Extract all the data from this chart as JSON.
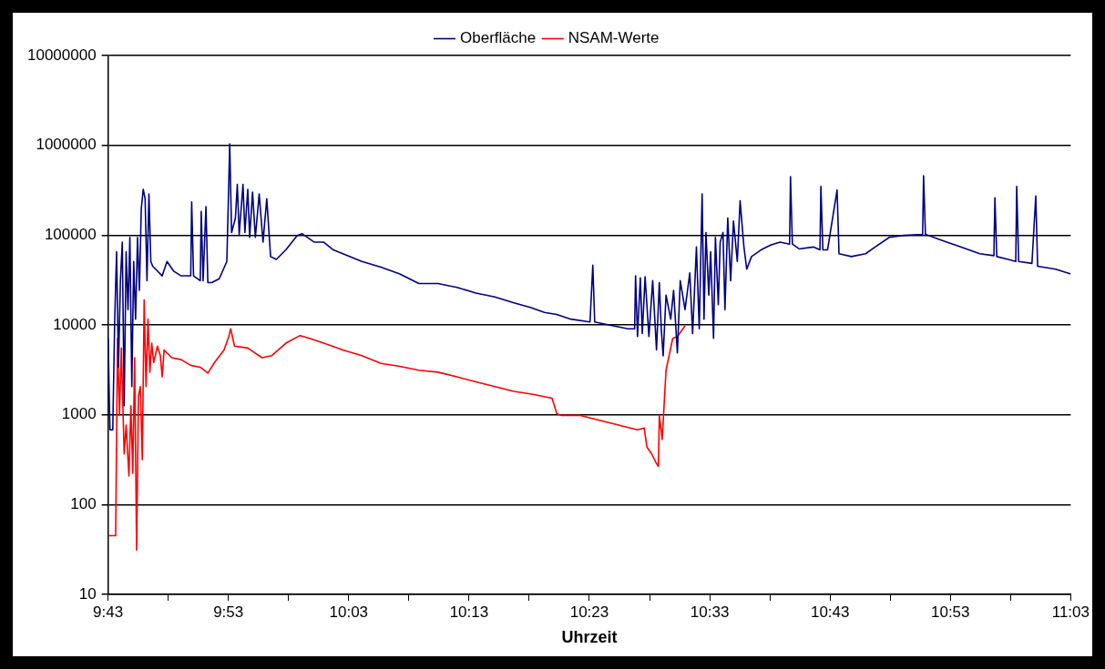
{
  "chart_data": {
    "type": "line",
    "xlabel": "Uhrzeit",
    "log": "y",
    "grid": "y",
    "legend": "top",
    "marker": "none",
    "xlim": [
      9.7167,
      11.05
    ],
    "ylim": [
      10,
      10000000
    ],
    "xticks": [
      {
        "value": 9.7167,
        "label": "9:43"
      },
      {
        "value": 9.8,
        "label": null
      },
      {
        "value": 9.8833,
        "label": "9:53"
      },
      {
        "value": 9.9667,
        "label": null
      },
      {
        "value": 10.05,
        "label": "10:03"
      },
      {
        "value": 10.1333,
        "label": null
      },
      {
        "value": 10.2167,
        "label": "10:13"
      },
      {
        "value": 10.3,
        "label": null
      },
      {
        "value": 10.3833,
        "label": "10:23"
      },
      {
        "value": 10.4667,
        "label": null
      },
      {
        "value": 10.55,
        "label": "10:33"
      },
      {
        "value": 10.6333,
        "label": null
      },
      {
        "value": 10.7167,
        "label": "10:43"
      },
      {
        "value": 10.8,
        "label": null
      },
      {
        "value": 10.8833,
        "label": "10:53"
      },
      {
        "value": 10.9667,
        "label": null
      },
      {
        "value": 11.05,
        "label": "11:03"
      }
    ],
    "yticks": [
      10,
      100,
      1000,
      10000,
      100000,
      1000000,
      10000000
    ],
    "series": [
      {
        "name": "Oberfläche",
        "color": "#000080",
        "x": [
          9.7167,
          9.7193,
          9.7232,
          9.7259,
          9.7285,
          9.7311,
          9.7338,
          9.7364,
          9.739,
          9.7417,
          9.7443,
          9.7469,
          9.7496,
          9.7522,
          9.7548,
          9.7575,
          9.7601,
          9.7627,
          9.7654,
          9.768,
          9.7706,
          9.7733,
          9.7759,
          9.7785,
          9.7851,
          9.7917,
          9.7983,
          9.8075,
          9.818,
          9.8312,
          9.8325,
          9.8351,
          9.8444,
          9.8457,
          9.8483,
          9.8523,
          9.8549,
          9.8602,
          9.8707,
          9.8812,
          9.8852,
          9.8878,
          9.8931,
          9.8957,
          9.8983,
          9.9036,
          9.9062,
          9.9102,
          9.9128,
          9.9168,
          9.9207,
          9.926,
          9.9313,
          9.9365,
          9.9418,
          9.9497,
          9.9629,
          9.9787,
          9.9852,
          10.0024,
          10.0155,
          10.0287,
          10.0419,
          10.0682,
          10.0946,
          10.1208,
          10.1472,
          10.1735,
          10.1999,
          10.2262,
          10.2525,
          10.2789,
          10.3026,
          10.3211,
          10.3382,
          10.3578,
          10.3842,
          10.3881,
          10.3907,
          10.4105,
          10.4368,
          10.446,
          10.4473,
          10.45,
          10.4539,
          10.4566,
          10.4605,
          10.4658,
          10.471,
          10.4763,
          10.4802,
          10.4829,
          10.4855,
          10.4895,
          10.496,
          10.5,
          10.5052,
          10.5092,
          10.5158,
          10.5224,
          10.5263,
          10.5316,
          10.5355,
          10.5395,
          10.5421,
          10.5448,
          10.5487,
          10.5513,
          10.5553,
          10.5579,
          10.5619,
          10.5645,
          10.5684,
          10.5711,
          10.575,
          10.579,
          10.5829,
          10.5882,
          10.5921,
          10.5974,
          10.6013,
          10.6079,
          10.6211,
          10.6343,
          10.6474,
          10.6606,
          10.6619,
          10.6645,
          10.6738,
          10.6935,
          10.7027,
          10.704,
          10.7067,
          10.7132,
          10.7264,
          10.7291,
          10.7462,
          10.7659,
          10.7791,
          10.7988,
          10.8186,
          10.8449,
          10.8462,
          10.8488,
          10.8712,
          10.8976,
          10.9239,
          10.9436,
          10.945,
          10.9476,
          10.9634,
          10.9739,
          10.9752,
          10.9779,
          10.9963,
          11.0016,
          11.0042,
          11.0292,
          11.05
        ],
        "values": [
          7080,
          679,
          679,
          11600,
          65200,
          3380,
          31100,
          83500,
          1260,
          65200,
          14800,
          94500,
          2060,
          50900,
          11600,
          94500,
          24300,
          198000,
          324000,
          254000,
          31100,
          287000,
          50900,
          45100,
          39800,
          35200,
          50900,
          39800,
          35200,
          35200,
          235000,
          35200,
          31100,
          184000,
          31100,
          208000,
          29600,
          29600,
          32700,
          50900,
          1040000,
          107000,
          155000,
          367000,
          102000,
          367000,
          107000,
          324000,
          94500,
          301000,
          94500,
          287000,
          83500,
          254000,
          57700,
          53600,
          68500,
          99300,
          104000,
          83500,
          83500,
          68500,
          62100,
          50900,
          44000,
          37000,
          28900,
          28900,
          26200,
          22600,
          20500,
          17600,
          15600,
          13800,
          13100,
          11600,
          10800,
          46200,
          10800,
          10000,
          9060,
          9060,
          35200,
          7440,
          33500,
          8010,
          34400,
          7440,
          31100,
          5260,
          29600,
          9060,
          4540,
          21500,
          11600,
          24300,
          4890,
          31100,
          14800,
          37900,
          8010,
          73800,
          9060,
          287000,
          11600,
          107000,
          21500,
          65200,
          7080,
          94500,
          16800,
          83500,
          107000,
          14800,
          155000,
          31100,
          144000,
          50900,
          241000,
          73800,
          41800,
          57700,
          68500,
          77500,
          83500,
          79400,
          447000,
          79400,
          70300,
          73800,
          68500,
          349000,
          68500,
          68500,
          317000,
          62100,
          57700,
          62100,
          73800,
          94500,
          99300,
          102000,
          458000,
          102000,
          87700,
          73800,
          62100,
          59100,
          260000,
          57700,
          53600,
          50900,
          349000,
          50900,
          48500,
          273000,
          45100,
          41800,
          37000
        ]
      },
      {
        "name": "NSAM-Werte",
        "color": "#ff0000",
        "x": [
          9.7167,
          9.7272,
          9.7298,
          9.7325,
          9.7351,
          9.739,
          9.7417,
          9.7456,
          9.7483,
          9.7509,
          9.7535,
          9.7562,
          9.7588,
          9.7614,
          9.7641,
          9.7667,
          9.7693,
          9.772,
          9.7746,
          9.7772,
          9.7799,
          9.7851,
          9.7891,
          9.7917,
          9.7943,
          9.8049,
          9.818,
          9.8312,
          9.8444,
          9.8549,
          9.8641,
          9.8773,
          9.8839,
          9.8865,
          9.8918,
          9.9102,
          9.9299,
          9.9431,
          9.9629,
          9.9826,
          9.9958,
          10.0155,
          10.0419,
          10.0682,
          10.0946,
          10.1208,
          10.1472,
          10.1735,
          10.1999,
          10.2262,
          10.2525,
          10.2789,
          10.3052,
          10.3316,
          10.3382,
          10.3447,
          10.371,
          10.3974,
          10.4237,
          10.45,
          10.4592,
          10.4631,
          10.4697,
          10.4763,
          10.4789,
          10.4802,
          10.4842,
          10.4895,
          10.4987,
          10.5053,
          10.5158
        ],
        "values": [
          45,
          45,
          7080,
          983,
          5530,
          366,
          767,
          208,
          1260,
          223,
          4320,
          31,
          1610,
          2060,
          316,
          19000,
          2060,
          11600,
          2980,
          6260,
          3820,
          5810,
          4540,
          2640,
          5260,
          4320,
          4110,
          3550,
          3380,
          2910,
          3820,
          5260,
          7440,
          9060,
          5810,
          5530,
          4320,
          4540,
          6260,
          7620,
          7080,
          6260,
          5260,
          4540,
          3730,
          3460,
          3130,
          2980,
          2640,
          2330,
          2060,
          1820,
          1690,
          1530,
          1030,
          983,
          983,
          869,
          767,
          679,
          713,
          435,
          366,
          286,
          266,
          983,
          531,
          3130,
          7080,
          7440,
          9750
        ]
      }
    ]
  }
}
